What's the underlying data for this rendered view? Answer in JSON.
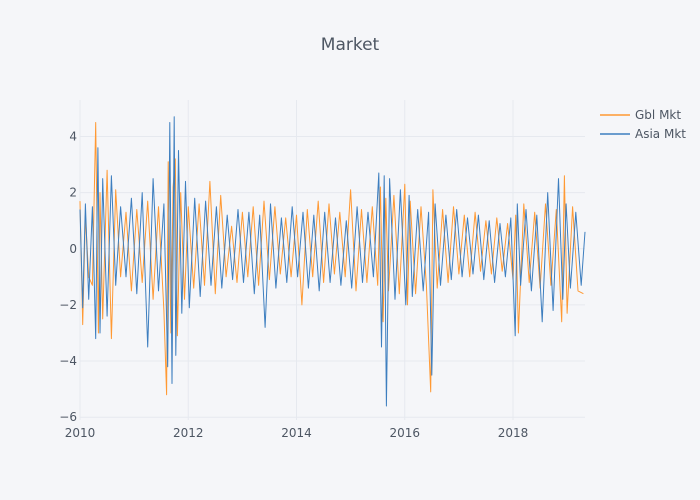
{
  "chart_data": {
    "type": "line",
    "title": "Market",
    "xlabel": "",
    "ylabel": "",
    "x_range": [
      "2010-01-01",
      "2019-05-01"
    ],
    "xlim": [
      2010.0,
      2019.33
    ],
    "ylim": [
      -6.1,
      5.3
    ],
    "x_ticks": [
      {
        "value": 2010,
        "label": "2010"
      },
      {
        "value": 2012,
        "label": "2012"
      },
      {
        "value": 2014,
        "label": "2014"
      },
      {
        "value": 2016,
        "label": "2016"
      },
      {
        "value": 2018,
        "label": "2018"
      }
    ],
    "y_ticks": [
      {
        "value": 4,
        "label": "4"
      },
      {
        "value": 2,
        "label": "2"
      },
      {
        "value": 0,
        "label": "0"
      },
      {
        "value": -2,
        "label": "−2"
      },
      {
        "value": -4,
        "label": "−4"
      },
      {
        "value": -6,
        "label": "−6"
      }
    ],
    "grid": true,
    "legend_position": "top-right",
    "series": [
      {
        "name": "Gbl Mkt",
        "color": "#ff9933",
        "x": [
          2010.0,
          2010.05,
          2010.1,
          2010.16,
          2010.23,
          2010.29,
          2010.34,
          2010.37,
          2010.42,
          2010.5,
          2010.58,
          2010.66,
          2010.75,
          2010.85,
          2010.95,
          2011.05,
          2011.15,
          2011.25,
          2011.35,
          2011.45,
          2011.55,
          2011.6,
          2011.63,
          2011.68,
          2011.72,
          2011.76,
          2011.8,
          2011.86,
          2011.93,
          2012.0,
          2012.1,
          2012.2,
          2012.3,
          2012.4,
          2012.5,
          2012.6,
          2012.7,
          2012.8,
          2012.9,
          2013.0,
          2013.1,
          2013.2,
          2013.3,
          2013.4,
          2013.5,
          2013.6,
          2013.7,
          2013.8,
          2013.9,
          2014.0,
          2014.1,
          2014.2,
          2014.3,
          2014.4,
          2014.5,
          2014.6,
          2014.7,
          2014.8,
          2014.9,
          2015.0,
          2015.1,
          2015.2,
          2015.3,
          2015.4,
          2015.5,
          2015.55,
          2015.6,
          2015.65,
          2015.7,
          2015.8,
          2015.9,
          2016.0,
          2016.05,
          2016.1,
          2016.2,
          2016.3,
          2016.4,
          2016.48,
          2016.52,
          2016.6,
          2016.7,
          2016.8,
          2016.9,
          2017.0,
          2017.1,
          2017.2,
          2017.3,
          2017.4,
          2017.5,
          2017.6,
          2017.7,
          2017.8,
          2017.9,
          2018.0,
          2018.05,
          2018.1,
          2018.2,
          2018.3,
          2018.4,
          2018.5,
          2018.6,
          2018.7,
          2018.8,
          2018.9,
          2018.95,
          2019.0,
          2019.1,
          2019.2,
          2019.3
        ],
        "values": [
          1.7,
          -2.7,
          1.2,
          -1.0,
          -1.3,
          4.5,
          -3.0,
          2.0,
          -2.5,
          2.8,
          -3.2,
          2.1,
          -1.0,
          1.3,
          -1.5,
          1.4,
          -1.2,
          1.7,
          -1.8,
          1.5,
          -2.2,
          -5.2,
          3.1,
          -3.0,
          2.2,
          3.2,
          -3.1,
          2.0,
          -1.8,
          1.5,
          -1.4,
          1.6,
          -1.3,
          2.4,
          -1.6,
          1.9,
          -1.0,
          0.8,
          -1.2,
          1.3,
          -1.0,
          1.5,
          -1.3,
          1.7,
          -1.1,
          1.5,
          -0.9,
          1.1,
          -1.0,
          1.2,
          -2.0,
          1.4,
          -1.0,
          1.7,
          -1.2,
          1.6,
          -0.9,
          1.3,
          -1.0,
          2.1,
          -1.5,
          1.4,
          -1.2,
          1.5,
          -1.3,
          2.2,
          -2.6,
          1.8,
          -1.5,
          1.9,
          -1.6,
          2.3,
          -2.0,
          1.7,
          -1.6,
          1.5,
          -1.3,
          -5.1,
          2.1,
          -1.4,
          1.4,
          -1.2,
          1.5,
          -0.9,
          1.2,
          -1.0,
          1.3,
          -0.8,
          1.0,
          -0.9,
          1.1,
          -0.8,
          0.9,
          -1.1,
          1.2,
          -3.0,
          1.6,
          -1.2,
          1.3,
          -1.4,
          1.6,
          -1.3,
          1.4,
          -2.6,
          2.6,
          -2.3,
          1.5,
          -1.5,
          -1.6
        ]
      },
      {
        "name": "Asia Mkt",
        "color": "#3d7ebf",
        "x": [
          2010.0,
          2010.05,
          2010.1,
          2010.16,
          2010.23,
          2010.29,
          2010.33,
          2010.37,
          2010.42,
          2010.5,
          2010.58,
          2010.66,
          2010.75,
          2010.85,
          2010.95,
          2011.05,
          2011.15,
          2011.25,
          2011.35,
          2011.45,
          2011.55,
          2011.62,
          2011.66,
          2011.7,
          2011.74,
          2011.77,
          2011.82,
          2011.88,
          2011.95,
          2012.02,
          2012.12,
          2012.22,
          2012.32,
          2012.42,
          2012.52,
          2012.62,
          2012.72,
          2012.82,
          2012.92,
          2013.02,
          2013.12,
          2013.22,
          2013.32,
          2013.42,
          2013.52,
          2013.62,
          2013.72,
          2013.82,
          2013.92,
          2014.02,
          2014.12,
          2014.22,
          2014.32,
          2014.42,
          2014.52,
          2014.62,
          2014.72,
          2014.82,
          2014.92,
          2015.02,
          2015.12,
          2015.22,
          2015.32,
          2015.42,
          2015.52,
          2015.57,
          2015.62,
          2015.66,
          2015.72,
          2015.82,
          2015.92,
          2016.02,
          2016.08,
          2016.14,
          2016.24,
          2016.34,
          2016.44,
          2016.5,
          2016.56,
          2016.66,
          2016.76,
          2016.86,
          2016.96,
          2017.06,
          2017.16,
          2017.26,
          2017.36,
          2017.46,
          2017.56,
          2017.66,
          2017.76,
          2017.86,
          2017.96,
          2018.04,
          2018.08,
          2018.14,
          2018.24,
          2018.34,
          2018.44,
          2018.54,
          2018.64,
          2018.74,
          2018.84,
          2018.92,
          2018.98,
          2019.06,
          2019.16,
          2019.26,
          2019.33
        ],
        "values": [
          1.4,
          -2.1,
          1.6,
          -1.8,
          1.5,
          -3.2,
          3.6,
          -3.0,
          2.5,
          -2.4,
          2.6,
          -1.3,
          1.5,
          -1.0,
          1.8,
          -1.6,
          2.0,
          -3.5,
          2.5,
          -1.5,
          1.6,
          -4.2,
          4.5,
          -4.8,
          4.7,
          -3.8,
          3.5,
          -2.3,
          2.4,
          -2.1,
          1.8,
          -1.7,
          1.7,
          -1.3,
          1.5,
          -1.4,
          1.2,
          -1.1,
          1.4,
          -1.2,
          1.3,
          -1.6,
          1.2,
          -2.8,
          1.6,
          -1.4,
          1.1,
          -1.2,
          1.5,
          -1.0,
          1.3,
          -1.4,
          1.2,
          -1.5,
          1.3,
          -1.2,
          1.1,
          -1.3,
          1.0,
          -1.4,
          1.5,
          -1.2,
          1.3,
          -1.0,
          2.7,
          -3.5,
          2.6,
          -5.6,
          2.5,
          -1.8,
          2.1,
          -2.0,
          1.9,
          -1.7,
          1.4,
          -1.5,
          1.3,
          -4.5,
          1.6,
          -1.3,
          1.2,
          -1.1,
          1.4,
          -1.0,
          1.1,
          -0.9,
          1.2,
          -1.1,
          1.0,
          -1.2,
          0.9,
          -1.0,
          1.1,
          -3.1,
          1.6,
          -1.3,
          1.4,
          -1.5,
          1.2,
          -2.6,
          2.0,
          -2.2,
          2.5,
          -1.8,
          1.6,
          -1.4,
          1.3,
          -1.3,
          0.6
        ]
      }
    ]
  }
}
